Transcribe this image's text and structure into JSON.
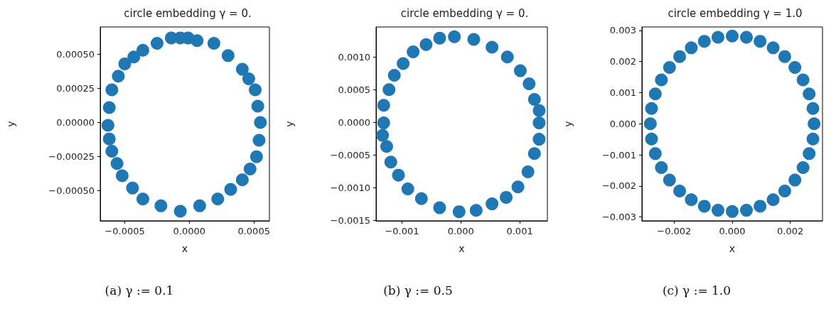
{
  "chart_data": [
    {
      "type": "scatter",
      "title": "circle embedding γ = 0.",
      "xlabel": "x",
      "ylabel": "y",
      "annotations": [
        "(a) γ := 0.1"
      ],
      "grid": false,
      "xlim": [
        -0.00069,
        0.00062
      ],
      "ylim": [
        -0.00072,
        0.0007
      ],
      "xticks": [
        {
          "value": -0.0005,
          "label": "−0.0005"
        },
        {
          "value": 0,
          "label": "0.0000"
        },
        {
          "value": 0.0005,
          "label": "0.0005"
        }
      ],
      "yticks": [
        {
          "value": -0.0005,
          "label": "−0.00050"
        },
        {
          "value": -0.00025,
          "label": "−0.00025"
        },
        {
          "value": 0,
          "label": "0.00000"
        },
        {
          "value": 0.00025,
          "label": "0.00025"
        },
        {
          "value": 0.0005,
          "label": "0.00050"
        }
      ],
      "series": [
        {
          "color": "#1f77b4",
          "x": [
            -7e-05,
            -1e-05,
            6e-05,
            0.00019,
            0.0003,
            0.00041,
            0.00046,
            0.00051,
            0.00053,
            0.00055,
            0.00054,
            0.00052,
            0.00047,
            0.00041,
            0.00032,
            0.00022,
            8e-05,
            -7e-05,
            -0.00022,
            -0.00036,
            -0.00044,
            -0.00052,
            -0.00056,
            -0.0006,
            -0.00062,
            -0.00063,
            -0.00062,
            -0.0006,
            -0.00055,
            -0.0005,
            -0.00043,
            -0.00036,
            -0.00025,
            -0.00014
          ],
          "values": [
            0.00062,
            0.00062,
            0.0006,
            0.00058,
            0.00049,
            0.00039,
            0.00032,
            0.00024,
            0.00012,
            0.0,
            -0.00013,
            -0.00025,
            -0.00034,
            -0.00042,
            -0.00049,
            -0.00056,
            -0.00061,
            -0.00065,
            -0.00061,
            -0.00056,
            -0.00048,
            -0.00039,
            -0.0003,
            -0.00021,
            -0.00012,
            -2e-05,
            0.00011,
            0.00024,
            0.00034,
            0.00043,
            0.00048,
            0.00053,
            0.00058,
            0.00062
          ]
        }
      ]
    },
    {
      "type": "scatter",
      "title": "circle embedding γ = 0.",
      "xlabel": "x",
      "ylabel": "y",
      "annotations": [
        "(b) γ := 0.5"
      ],
      "grid": false,
      "xlim": [
        -0.00144,
        0.00147
      ],
      "ylim": [
        -0.00151,
        0.00146
      ],
      "xticks": [
        {
          "value": -0.001,
          "label": "−0.001"
        },
        {
          "value": 0,
          "label": "0.000"
        },
        {
          "value": 0.001,
          "label": "0.001"
        }
      ],
      "yticks": [
        {
          "value": -0.0015,
          "label": "−0.0015"
        },
        {
          "value": -0.001,
          "label": "−0.0010"
        },
        {
          "value": -0.0005,
          "label": "−0.0005"
        },
        {
          "value": 0,
          "label": "0.0000"
        },
        {
          "value": 0.0005,
          "label": "0.0005"
        },
        {
          "value": 0.001,
          "label": "0.0010"
        }
      ],
      "series": [
        {
          "color": "#1f77b4",
          "x": [
            -0.00011,
            0.00022,
            0.00053,
            0.00079,
            0.00101,
            0.00116,
            0.00125,
            0.00133,
            0.00133,
            0.00133,
            0.00125,
            0.00114,
            0.00097,
            0.00077,
            0.00053,
            0.00026,
            -3e-05,
            -0.00036,
            -0.00067,
            -0.0009,
            -0.00106,
            -0.00119,
            -0.00126,
            -0.00133,
            -0.00131,
            -0.00131,
            -0.00122,
            -0.00113,
            -0.00098,
            -0.00081,
            -0.00059,
            -0.00036
          ],
          "values": [
            0.00131,
            0.00127,
            0.00115,
            0.001,
            0.00079,
            0.00059,
            0.00035,
            0.00018,
            -1e-05,
            -0.00026,
            -0.00048,
            -0.00076,
            -0.00099,
            -0.00115,
            -0.00125,
            -0.00135,
            -0.00137,
            -0.00131,
            -0.00117,
            -0.00102,
            -0.00081,
            -0.00061,
            -0.00037,
            -0.0002,
            -1e-05,
            0.00026,
            0.0005,
            0.00072,
            0.0009,
            0.00108,
            0.00119,
            0.00129
          ]
        }
      ]
    },
    {
      "type": "scatter",
      "title": "circle embedding γ = 1.0",
      "xlabel": "x",
      "ylabel": "y",
      "annotations": [
        "(c) γ := 1.0"
      ],
      "grid": false,
      "xlim": [
        -0.00311,
        0.00311
      ],
      "ylim": [
        -0.00312,
        0.00311
      ],
      "xticks": [
        {
          "value": -0.002,
          "label": "−0.002"
        },
        {
          "value": 0,
          "label": "0.000"
        },
        {
          "value": 0.002,
          "label": "0.002"
        }
      ],
      "yticks": [
        {
          "value": -0.003,
          "label": "−0.003"
        },
        {
          "value": -0.002,
          "label": "−0.002"
        },
        {
          "value": -0.001,
          "label": "−0.001"
        },
        {
          "value": 0,
          "label": "0.000"
        },
        {
          "value": 0.001,
          "label": "0.001"
        },
        {
          "value": 0.002,
          "label": "0.002"
        },
        {
          "value": 0.003,
          "label": "0.003"
        }
      ],
      "series": [
        {
          "color": "#1f77b4",
          "x": [
            0.00282,
            0.00278,
            0.00265,
            0.00244,
            0.00216,
            0.00181,
            0.00141,
            0.00096,
            0.00049,
            0.0,
            -0.00049,
            -0.00096,
            -0.00141,
            -0.00181,
            -0.00216,
            -0.00244,
            -0.00265,
            -0.00278,
            -0.00282,
            -0.00278,
            -0.00265,
            -0.00244,
            -0.00216,
            -0.00181,
            -0.00141,
            -0.00096,
            -0.00049,
            0.0,
            0.00049,
            0.00096,
            0.00141,
            0.00181,
            0.00216,
            0.00244,
            0.00265,
            0.00278
          ],
          "values": [
            0.0,
            0.00049,
            0.00096,
            0.00141,
            0.00181,
            0.00216,
            0.00244,
            0.00265,
            0.00278,
            0.00282,
            0.00278,
            0.00265,
            0.00244,
            0.00216,
            0.00181,
            0.00141,
            0.00096,
            0.00049,
            0.0,
            -0.00049,
            -0.00096,
            -0.00141,
            -0.00181,
            -0.00216,
            -0.00244,
            -0.00265,
            -0.00278,
            -0.00282,
            -0.00278,
            -0.00265,
            -0.00244,
            -0.00216,
            -0.00181,
            -0.00141,
            -0.00096,
            -0.00049
          ]
        }
      ]
    }
  ]
}
